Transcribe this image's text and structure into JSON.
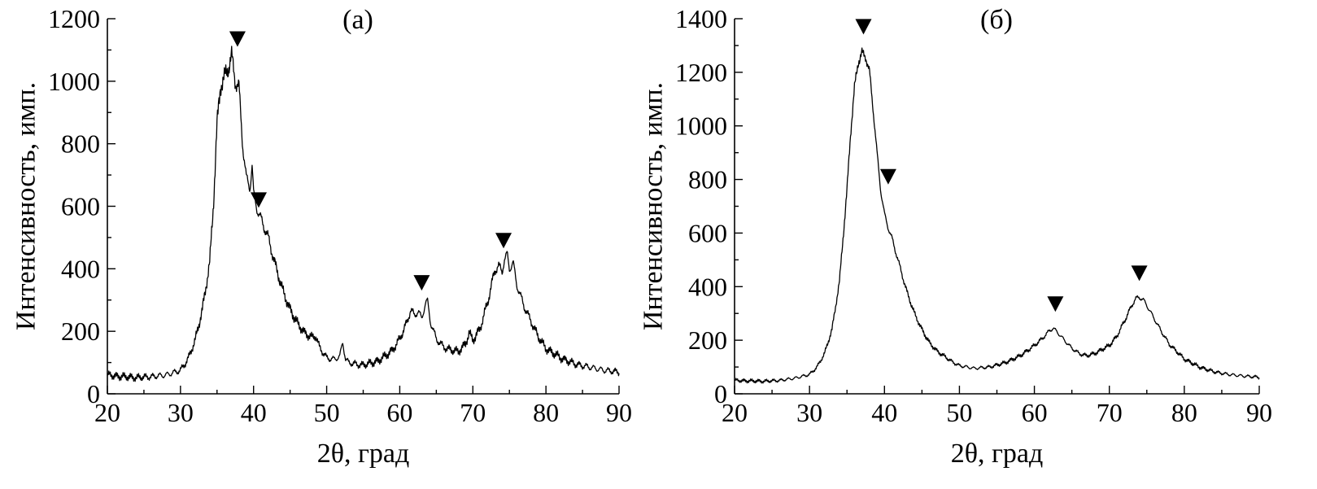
{
  "chart_data": [
    {
      "type": "line",
      "panel_label": "(а)",
      "xlabel": "2θ, град",
      "ylabel": "Интенсивность, имп.",
      "xlim": [
        20,
        90
      ],
      "ylim": [
        0,
        1200
      ],
      "x_ticks": [
        "20",
        "30",
        "40",
        "50",
        "60",
        "70",
        "80",
        "90"
      ],
      "y_ticks": [
        "0",
        "200",
        "400",
        "600",
        "800",
        "1000",
        "1200"
      ],
      "grid": false,
      "noise": 12,
      "x": [
        20,
        22,
        24,
        26,
        28,
        30,
        31,
        32,
        33,
        34,
        34.5,
        35,
        35.5,
        36,
        36.5,
        37,
        37.5,
        38,
        38.5,
        39,
        39.5,
        39.8,
        40,
        40.5,
        41,
        42,
        43,
        44,
        45,
        46,
        47,
        48,
        48.5,
        49,
        50,
        51,
        51.8,
        52.2,
        52.6,
        53,
        54,
        55,
        56,
        57,
        58,
        59,
        60,
        61,
        61.5,
        62,
        62.5,
        63,
        63.5,
        63.8,
        64.2,
        65,
        66,
        67,
        68,
        69,
        69.5,
        70,
        71,
        72,
        73,
        73.5,
        74,
        74.3,
        74.7,
        75,
        75.5,
        76,
        77,
        78,
        79,
        80,
        82,
        84,
        86,
        88,
        90
      ],
      "y": [
        60,
        55,
        52,
        55,
        60,
        75,
        110,
        170,
        270,
        420,
        600,
        860,
        990,
        1010,
        1040,
        1080,
        1000,
        980,
        800,
        690,
        660,
        730,
        640,
        590,
        560,
        500,
        410,
        330,
        270,
        225,
        195,
        180,
        185,
        150,
        115,
        110,
        120,
        165,
        110,
        100,
        95,
        92,
        98,
        105,
        120,
        140,
        175,
        230,
        270,
        250,
        265,
        240,
        290,
        295,
        230,
        175,
        150,
        140,
        135,
        160,
        195,
        170,
        210,
        290,
        395,
        410,
        390,
        430,
        445,
        400,
        420,
        350,
        280,
        230,
        180,
        145,
        115,
        95,
        85,
        75,
        70
      ],
      "peak_markers_x": [
        37.8,
        40.7,
        63,
        74.2
      ],
      "peak_markers_y": [
        1135,
        620,
        355,
        490
      ]
    },
    {
      "type": "line",
      "panel_label": "(б)",
      "xlabel": "2θ, град",
      "ylabel": "Интенсивность, имп.",
      "xlim": [
        20,
        90
      ],
      "ylim": [
        0,
        1400
      ],
      "x_ticks": [
        "20",
        "30",
        "40",
        "50",
        "60",
        "70",
        "80",
        "90"
      ],
      "y_ticks": [
        "0",
        "200",
        "400",
        "600",
        "800",
        "1000",
        "1200",
        "1400"
      ],
      "grid": false,
      "noise": 7,
      "x": [
        20,
        22,
        24,
        26,
        28,
        30,
        31,
        32,
        33,
        34,
        35,
        35.5,
        36,
        36.5,
        37,
        37.5,
        38,
        38.5,
        39,
        39.5,
        40,
        40.5,
        41,
        42,
        43,
        44,
        45,
        46,
        47,
        48,
        49,
        50,
        52,
        54,
        56,
        58,
        60,
        61,
        62,
        62.5,
        63,
        64,
        65,
        66,
        67,
        68,
        69,
        70,
        71,
        72,
        73,
        73.5,
        74,
        74.5,
        75,
        76,
        77,
        78,
        80,
        82,
        84,
        86,
        88,
        90
      ],
      "y": [
        50,
        48,
        47,
        50,
        58,
        72,
        100,
        150,
        240,
        420,
        760,
        980,
        1140,
        1240,
        1270,
        1260,
        1200,
        1060,
        900,
        760,
        670,
        620,
        580,
        480,
        380,
        300,
        240,
        190,
        160,
        140,
        120,
        105,
        95,
        100,
        115,
        140,
        180,
        205,
        235,
        245,
        232,
        200,
        170,
        150,
        142,
        150,
        165,
        180,
        215,
        270,
        330,
        355,
        360,
        352,
        330,
        280,
        230,
        185,
        130,
        100,
        82,
        72,
        66,
        62
      ],
      "peak_markers_x": [
        37.2,
        40.5,
        62.8,
        74
      ],
      "peak_markers_y": [
        1370,
        810,
        335,
        450
      ]
    }
  ]
}
